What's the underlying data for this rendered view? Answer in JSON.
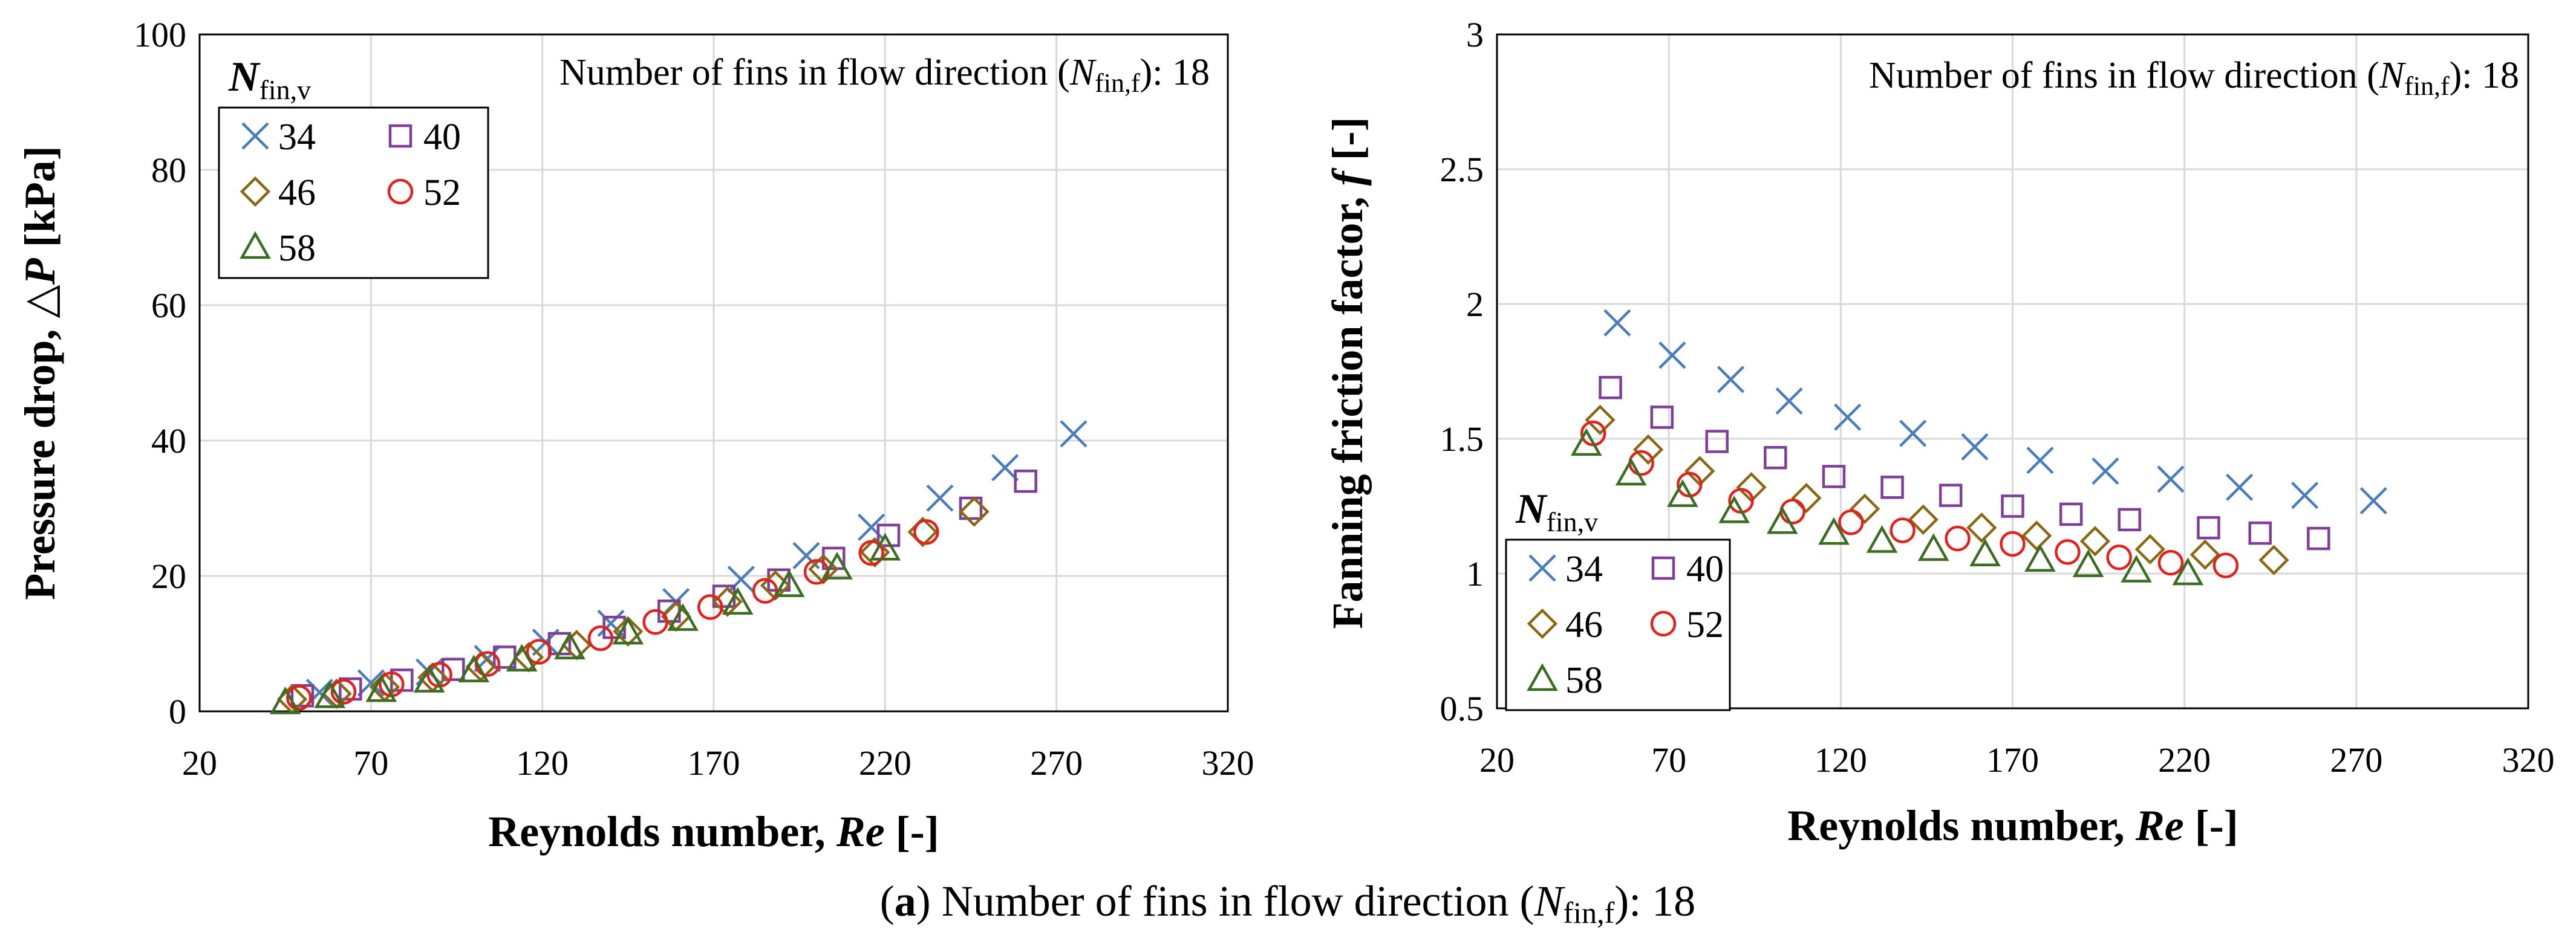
{
  "colors": {
    "34": "#4a7ebb",
    "40": "#7f3f98",
    "46": "#8b6914",
    "52": "#e3211c",
    "58": "#3b6e23",
    "grid": "#d9d9d9",
    "axis": "#000000"
  },
  "chart_data": [
    {
      "type": "scatter",
      "ylabel_prefix": "Pressure drop, ",
      "ylabel_symbol": "△P",
      "ylabel_suffix": " [kPa]",
      "xlabel_prefix": "Reynolds number, ",
      "xlabel_symbol": "Re",
      "xlabel_suffix": " [-]",
      "xlim": [
        20,
        320
      ],
      "ylim": [
        0,
        100
      ],
      "xticks": [
        "20",
        "70",
        "120",
        "170",
        "220",
        "270",
        "320"
      ],
      "yticks": [
        "0",
        "20",
        "40",
        "60",
        "80",
        "100"
      ],
      "annotation": {
        "prefix": "Number of fins in flow direction (",
        "symbol": "N",
        "sub": "fin,f",
        "suffix": "): 18"
      },
      "legend": {
        "title_symbol": "N",
        "title_sub": "fin,v",
        "position": "top-left",
        "entries": [
          "34",
          "40",
          "46",
          "52",
          "58"
        ]
      },
      "series": [
        {
          "name": "34",
          "marker": "x",
          "x": [
            55,
            70,
            87,
            104,
            121,
            140,
            159,
            178,
            197,
            216,
            236,
            255,
            275
          ],
          "y": [
            2.8,
            4.2,
            5.8,
            7.8,
            10.2,
            13.0,
            16.2,
            19.5,
            23.0,
            27.2,
            31.5,
            36.0,
            41.0
          ]
        },
        {
          "name": "40",
          "marker": "square",
          "x": [
            50,
            64,
            79,
            94,
            109,
            125,
            141,
            157,
            173,
            189,
            205,
            221,
            245,
            261
          ],
          "y": [
            2.3,
            3.3,
            4.6,
            6.2,
            8.0,
            10.0,
            12.4,
            14.8,
            17.0,
            19.4,
            22.6,
            26.0,
            30.0,
            34.0
          ]
        },
        {
          "name": "46",
          "marker": "diamond",
          "x": [
            47,
            60,
            74,
            88,
            102,
            116,
            130,
            145,
            159,
            174,
            188,
            202,
            217,
            231,
            246
          ],
          "y": [
            1.8,
            2.6,
            3.6,
            5.0,
            6.6,
            8.0,
            9.8,
            11.8,
            14.0,
            16.2,
            18.6,
            21.0,
            23.5,
            26.5,
            29.5
          ]
        },
        {
          "name": "52",
          "marker": "circle",
          "x": [
            49,
            62,
            76,
            90,
            104,
            119,
            137,
            153,
            169,
            185,
            200,
            216,
            232
          ],
          "y": [
            2.0,
            2.9,
            4.0,
            5.4,
            7.0,
            8.8,
            10.8,
            13.2,
            15.4,
            17.8,
            20.6,
            23.4,
            26.5
          ]
        },
        {
          "name": "58",
          "marker": "triangle",
          "x": [
            45,
            58,
            73,
            87,
            100,
            114,
            128,
            145,
            161,
            177,
            192,
            206,
            220
          ],
          "y": [
            1.3,
            2.2,
            3.1,
            4.5,
            6.0,
            7.6,
            9.4,
            11.6,
            13.6,
            16.0,
            18.6,
            21.2,
            24.0
          ]
        }
      ]
    },
    {
      "type": "scatter",
      "ylabel_prefix": "Fanning friction factor, ",
      "ylabel_symbol": "f",
      "ylabel_suffix": " [-]",
      "xlabel_prefix": "Reynolds number, ",
      "xlabel_symbol": "Re",
      "xlabel_suffix": " [-]",
      "xlim": [
        20,
        320
      ],
      "ylim": [
        0.5,
        3
      ],
      "xticks": [
        "20",
        "70",
        "120",
        "170",
        "220",
        "270",
        "320"
      ],
      "yticks": [
        "0.5",
        "1",
        "1.5",
        "2",
        "2.5",
        "3"
      ],
      "annotation": {
        "prefix": "Number of fins in flow direction (",
        "symbol": "N",
        "sub": "fin,f",
        "suffix": "): 18"
      },
      "legend": {
        "title_symbol": "N",
        "title_sub": "fin,v",
        "position": "lower-left",
        "entries": [
          "34",
          "40",
          "46",
          "52",
          "58"
        ]
      },
      "series": [
        {
          "name": "34",
          "marker": "x",
          "x": [
            55,
            71,
            88,
            105,
            122,
            141,
            159,
            178,
            197,
            216,
            236,
            255,
            275
          ],
          "y": [
            1.93,
            1.81,
            1.72,
            1.64,
            1.58,
            1.52,
            1.47,
            1.42,
            1.38,
            1.35,
            1.32,
            1.29,
            1.27
          ]
        },
        {
          "name": "40",
          "marker": "square",
          "x": [
            53,
            68,
            84,
            101,
            118,
            135,
            152,
            170,
            187,
            204,
            227,
            242,
            259
          ],
          "y": [
            1.69,
            1.58,
            1.49,
            1.43,
            1.36,
            1.32,
            1.29,
            1.25,
            1.22,
            1.2,
            1.17,
            1.15,
            1.13
          ]
        },
        {
          "name": "46",
          "marker": "diamond",
          "x": [
            50,
            64,
            79,
            94,
            110,
            127,
            144,
            161,
            177,
            194,
            210,
            226,
            246
          ],
          "y": [
            1.57,
            1.46,
            1.38,
            1.32,
            1.28,
            1.24,
            1.2,
            1.17,
            1.14,
            1.12,
            1.09,
            1.07,
            1.05
          ]
        },
        {
          "name": "52",
          "marker": "circle",
          "x": [
            48,
            62,
            76,
            91,
            106,
            123,
            138,
            154,
            170,
            186,
            201,
            216,
            232
          ],
          "y": [
            1.52,
            1.41,
            1.33,
            1.27,
            1.23,
            1.19,
            1.16,
            1.13,
            1.11,
            1.08,
            1.06,
            1.04,
            1.03
          ]
        },
        {
          "name": "58",
          "marker": "triangle",
          "x": [
            46,
            59,
            74,
            89,
            103,
            118,
            132,
            147,
            162,
            178,
            192,
            206,
            221
          ],
          "y": [
            1.48,
            1.37,
            1.29,
            1.23,
            1.19,
            1.15,
            1.12,
            1.09,
            1.07,
            1.05,
            1.03,
            1.01,
            1.0
          ]
        }
      ]
    }
  ],
  "caption": {
    "label_bold": "a",
    "label_open": "(",
    "label_close": ") Number of fins in flow direction (",
    "symbol": "N",
    "sub": "fin,f",
    "suffix": "): 18"
  }
}
